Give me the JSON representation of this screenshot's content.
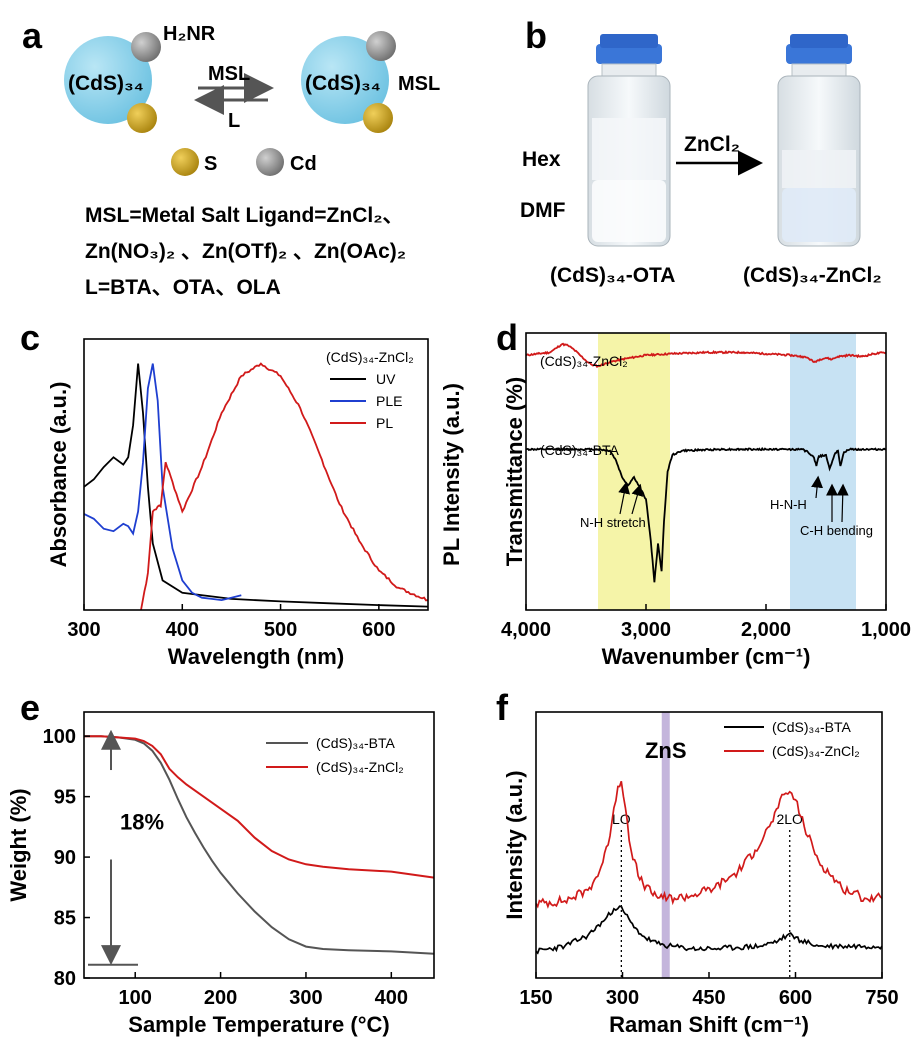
{
  "panels": {
    "a": {
      "letter": "a",
      "reagent_top": "H₂NR",
      "cluster_left": "(CdS)₃₄",
      "cluster_right": "(CdS)₃₄",
      "right_ligand": "MSL",
      "arrow_forward": "MSL",
      "arrow_back": "L",
      "legend_s": "S",
      "legend_cd": "Cd",
      "line1": "MSL=Metal Salt Ligand=ZnCl₂、",
      "line2": "Zn(NO₃)₂ 、Zn(OTf)₂ 、Zn(OAc)₂",
      "line3": "L=BTA、OTA、OLA",
      "colors": {
        "cluster": "#7fcfe8",
        "sulfur": "#c9a227",
        "cadmium": "#8f8f8f"
      }
    },
    "b": {
      "letter": "b",
      "label_hex": "Hex",
      "label_dmf": "DMF",
      "arrow_label": "ZnCl₂",
      "vial_left": "(CdS)₃₄-OTA",
      "vial_right": "(CdS)₃₄-ZnCl₂",
      "colors": {
        "cap": "#2f66c9",
        "liquid": "#e9f0f5"
      }
    }
  },
  "chart_data": [
    {
      "id": "c",
      "letter": "c",
      "type": "line",
      "xlabel": "Wavelength (nm)",
      "ylabel_left": "Absorbance (a.u.)",
      "ylabel_right": "PL Intensity (a.u.)",
      "xlim": [
        300,
        650
      ],
      "ylim": [
        0,
        1.1
      ],
      "xticks": [
        300,
        400,
        500,
        600
      ],
      "legend_title": "(CdS)₃₄-ZnCl₂",
      "legend_position": "top-right",
      "series": [
        {
          "name": "UV",
          "color": "#000000",
          "x": [
            300,
            310,
            320,
            330,
            340,
            345,
            350,
            355,
            360,
            365,
            370,
            380,
            400,
            450,
            500,
            550,
            600,
            650
          ],
          "y": [
            0.5,
            0.53,
            0.58,
            0.62,
            0.59,
            0.62,
            0.75,
            1.0,
            0.8,
            0.5,
            0.27,
            0.12,
            0.07,
            0.045,
            0.035,
            0.027,
            0.02,
            0.014
          ]
        },
        {
          "name": "PLE",
          "color": "#1f3fd0",
          "x": [
            300,
            310,
            320,
            330,
            340,
            345,
            350,
            355,
            360,
            365,
            370,
            375,
            380,
            390,
            400,
            410,
            420,
            430,
            440,
            450,
            460
          ],
          "y": [
            0.39,
            0.37,
            0.33,
            0.32,
            0.35,
            0.34,
            0.31,
            0.4,
            0.6,
            0.9,
            1.0,
            0.85,
            0.5,
            0.25,
            0.12,
            0.07,
            0.05,
            0.045,
            0.04,
            0.05,
            0.06
          ]
        },
        {
          "name": "PL",
          "color": "#d11a1a",
          "x": [
            358,
            365,
            370,
            375,
            378,
            383,
            390,
            400,
            420,
            440,
            460,
            480,
            500,
            520,
            540,
            560,
            580,
            600,
            620,
            650
          ],
          "y": [
            0.0,
            0.15,
            0.4,
            0.42,
            0.42,
            0.6,
            0.52,
            0.4,
            0.58,
            0.8,
            0.95,
            1.0,
            0.95,
            0.82,
            0.63,
            0.43,
            0.28,
            0.16,
            0.09,
            0.04
          ]
        }
      ]
    },
    {
      "id": "d",
      "letter": "d",
      "type": "line",
      "xlabel": "Wavenumber (cm⁻¹)",
      "ylabel": "Transmittance (%)",
      "xlim": [
        4000,
        1000
      ],
      "xticks": [
        4000,
        3000,
        2000,
        1000
      ],
      "xtick_labels": [
        "4,000",
        "3,000",
        "2,000",
        "1,000"
      ],
      "ylim": [
        0,
        1
      ],
      "highlight_bands": [
        {
          "from": 3400,
          "to": 2800,
          "color": "#f5f4a8"
        },
        {
          "from": 1800,
          "to": 1250,
          "color": "#c7e2f3"
        }
      ],
      "series": [
        {
          "name": "(CdS)₃₄-ZnCl₂",
          "color": "#d11a1a",
          "x": [
            4000,
            3900,
            3800,
            3750,
            3700,
            3650,
            3600,
            3550,
            3500,
            3450,
            3400,
            3300,
            3200,
            3000,
            2800,
            2500,
            2200,
            2000,
            1800,
            1700,
            1650,
            1600,
            1550,
            1500,
            1450,
            1400,
            1300,
            1200,
            1100,
            1000
          ],
          "y": [
            0.92,
            0.925,
            0.93,
            0.945,
            0.96,
            0.955,
            0.94,
            0.92,
            0.9,
            0.885,
            0.88,
            0.895,
            0.905,
            0.92,
            0.925,
            0.93,
            0.93,
            0.925,
            0.92,
            0.915,
            0.91,
            0.895,
            0.905,
            0.91,
            0.905,
            0.915,
            0.92,
            0.915,
            0.925,
            0.93
          ]
        },
        {
          "name": "(CdS)₃₄-BTA",
          "color": "#000000",
          "x": [
            4000,
            3800,
            3600,
            3400,
            3300,
            3250,
            3200,
            3150,
            3100,
            3050,
            3000,
            2960,
            2930,
            2900,
            2870,
            2850,
            2820,
            2780,
            2700,
            2400,
            2000,
            1700,
            1650,
            1600,
            1580,
            1560,
            1500,
            1470,
            1430,
            1400,
            1380,
            1350,
            1300,
            1200,
            1000
          ],
          "y": [
            0.58,
            0.58,
            0.58,
            0.58,
            0.575,
            0.54,
            0.48,
            0.45,
            0.48,
            0.44,
            0.4,
            0.25,
            0.1,
            0.24,
            0.14,
            0.32,
            0.5,
            0.56,
            0.575,
            0.58,
            0.58,
            0.58,
            0.57,
            0.55,
            0.52,
            0.555,
            0.56,
            0.51,
            0.56,
            0.575,
            0.52,
            0.57,
            0.58,
            0.58,
            0.58
          ]
        }
      ],
      "annotations": [
        "N-H stretch",
        "H-N-H",
        "C-H bending"
      ]
    },
    {
      "id": "e",
      "letter": "e",
      "type": "line",
      "xlabel": "Sample Temperature (°C)",
      "ylabel": "Weight (%)",
      "xlim": [
        40,
        450
      ],
      "ylim": [
        80,
        102
      ],
      "xticks": [
        100,
        200,
        300,
        400
      ],
      "yticks": [
        80,
        85,
        90,
        95,
        100
      ],
      "legend_position": "top-right",
      "annotation": "18%",
      "series": [
        {
          "name": "(CdS)₃₄-BTA",
          "color": "#555555",
          "x": [
            40,
            60,
            80,
            100,
            110,
            120,
            130,
            140,
            150,
            160,
            170,
            180,
            190,
            200,
            220,
            240,
            260,
            280,
            300,
            320,
            350,
            400,
            450
          ],
          "y": [
            100.0,
            100.0,
            99.9,
            99.7,
            99.4,
            98.8,
            97.8,
            96.4,
            94.8,
            93.3,
            92.0,
            90.8,
            89.7,
            88.7,
            87.0,
            85.5,
            84.2,
            83.2,
            82.6,
            82.4,
            82.3,
            82.2,
            82.0
          ]
        },
        {
          "name": "(CdS)₃₄-ZnCl₂",
          "color": "#d11a1a",
          "x": [
            40,
            60,
            80,
            100,
            110,
            120,
            130,
            140,
            150,
            160,
            180,
            200,
            220,
            240,
            260,
            280,
            300,
            320,
            350,
            400,
            450
          ],
          "y": [
            100.0,
            100.0,
            99.9,
            99.8,
            99.6,
            99.2,
            98.5,
            97.3,
            96.6,
            96.0,
            95.0,
            94.0,
            93.0,
            91.6,
            90.5,
            89.8,
            89.4,
            89.2,
            89.0,
            88.8,
            88.3
          ]
        }
      ]
    },
    {
      "id": "f",
      "letter": "f",
      "type": "line",
      "xlabel": "Raman Shift (cm⁻¹)",
      "ylabel": "Intensity (a.u.)",
      "xlim": [
        150,
        750
      ],
      "ylim": [
        0,
        1
      ],
      "xticks": [
        150,
        300,
        450,
        600,
        750
      ],
      "legend_position": "top-right",
      "highlight_label": "ZnS",
      "highlight_x": 375,
      "peak_labels": [
        {
          "text": "LO",
          "x": 298
        },
        {
          "text": "2LO",
          "x": 590
        }
      ],
      "series": [
        {
          "name": "(CdS)₃₄-BTA",
          "color": "#000000",
          "x": [
            150,
            200,
            240,
            270,
            285,
            295,
            305,
            320,
            340,
            360,
            380,
            420,
            460,
            500,
            540,
            570,
            585,
            595,
            610,
            640,
            680,
            720,
            750
          ],
          "y": [
            0.1,
            0.12,
            0.16,
            0.22,
            0.26,
            0.27,
            0.24,
            0.19,
            0.15,
            0.13,
            0.12,
            0.11,
            0.11,
            0.115,
            0.12,
            0.14,
            0.16,
            0.16,
            0.14,
            0.12,
            0.12,
            0.12,
            0.12
          ]
        },
        {
          "name": "(CdS)₃₄-ZnCl₂",
          "color": "#d11a1a",
          "x": [
            150,
            200,
            240,
            260,
            275,
            285,
            292,
            298,
            305,
            315,
            330,
            350,
            370,
            390,
            420,
            460,
            500,
            530,
            555,
            570,
            580,
            590,
            600,
            615,
            640,
            680,
            720,
            750
          ],
          "y": [
            0.28,
            0.29,
            0.33,
            0.4,
            0.5,
            0.64,
            0.72,
            0.74,
            0.64,
            0.48,
            0.37,
            0.32,
            0.3,
            0.3,
            0.31,
            0.34,
            0.4,
            0.48,
            0.57,
            0.64,
            0.69,
            0.7,
            0.67,
            0.57,
            0.44,
            0.34,
            0.3,
            0.3
          ]
        }
      ]
    }
  ]
}
